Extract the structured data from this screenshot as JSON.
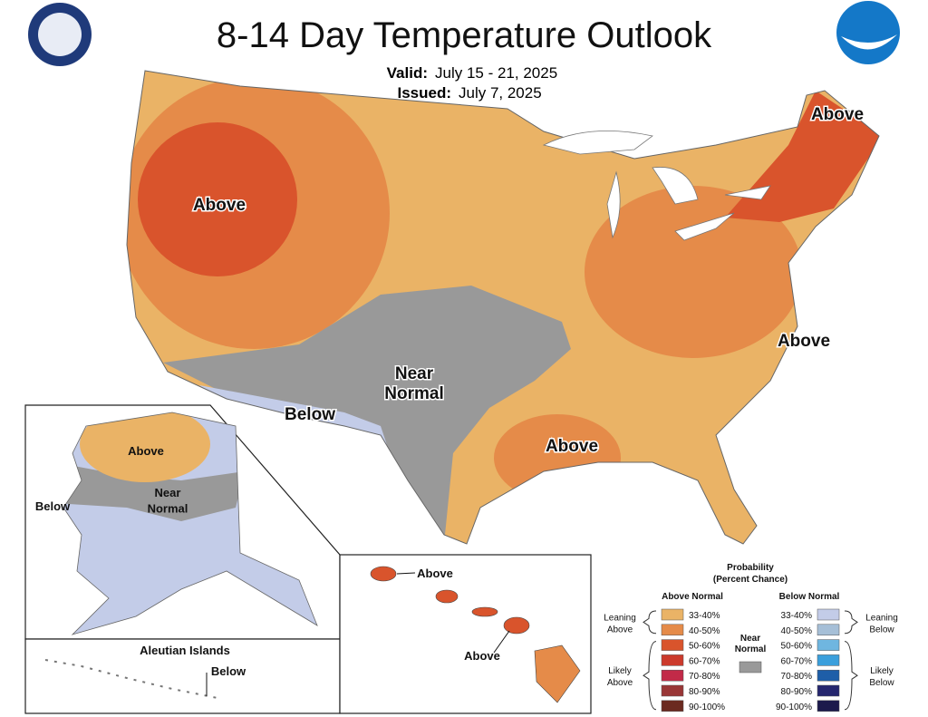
{
  "header": {
    "title": "8-14 Day Temperature Outlook",
    "valid_label": "Valid:",
    "valid": "July 15 - 21, 2025",
    "issued_label": "Issued:",
    "issued": "July 7, 2025"
  },
  "map_labels": [
    {
      "lines": [
        "Above"
      ]
    },
    {
      "lines": [
        "Above"
      ]
    },
    {
      "lines": [
        "Above"
      ]
    },
    {
      "lines": [
        "Above"
      ]
    },
    {
      "lines": [
        "Near",
        "Normal"
      ]
    },
    {
      "lines": [
        "Below"
      ]
    },
    {
      "lines": [
        "Above"
      ]
    },
    {
      "lines": [
        "Near",
        "Normal"
      ]
    },
    {
      "lines": [
        "Below"
      ]
    },
    {
      "lines": [
        "Below"
      ]
    },
    {
      "lines": [
        "Above"
      ]
    },
    {
      "lines": [
        "Above"
      ]
    }
  ],
  "aleutian_title": "Aleutian Islands",
  "legend": {
    "title": [
      "Probability",
      "(Percent Chance)"
    ],
    "above_heading": "Above Normal",
    "below_heading": "Below Normal",
    "near": {
      "lines": [
        "Near",
        "Normal"
      ],
      "color": "#999999"
    },
    "above_groups": [
      {
        "lines": [
          "Leaning",
          "Above"
        ]
      },
      {
        "lines": [
          "Likely",
          "Above"
        ]
      }
    ],
    "below_groups": [
      {
        "lines": [
          "Leaning",
          "Below"
        ]
      },
      {
        "lines": [
          "Likely",
          "Below"
        ]
      }
    ],
    "above_bins": [
      {
        "label": "33-40%",
        "color": "#eab366"
      },
      {
        "label": "40-50%",
        "color": "#e58b49"
      },
      {
        "label": "50-60%",
        "color": "#d9542c"
      },
      {
        "label": "60-70%",
        "color": "#cc3a2c"
      },
      {
        "label": "70-80%",
        "color": "#c22a48"
      },
      {
        "label": "80-90%",
        "color": "#993636"
      },
      {
        "label": "90-100%",
        "color": "#6b2a20"
      }
    ],
    "below_bins": [
      {
        "label": "33-40%",
        "color": "#c3cce8"
      },
      {
        "label": "40-50%",
        "color": "#a6bfd7"
      },
      {
        "label": "50-60%",
        "color": "#6fb6e0"
      },
      {
        "label": "60-70%",
        "color": "#3a9fdc"
      },
      {
        "label": "70-80%",
        "color": "#1e5ea8"
      },
      {
        "label": "80-90%",
        "color": "#25266e"
      },
      {
        "label": "90-100%",
        "color": "#1c1a4c"
      }
    ]
  }
}
